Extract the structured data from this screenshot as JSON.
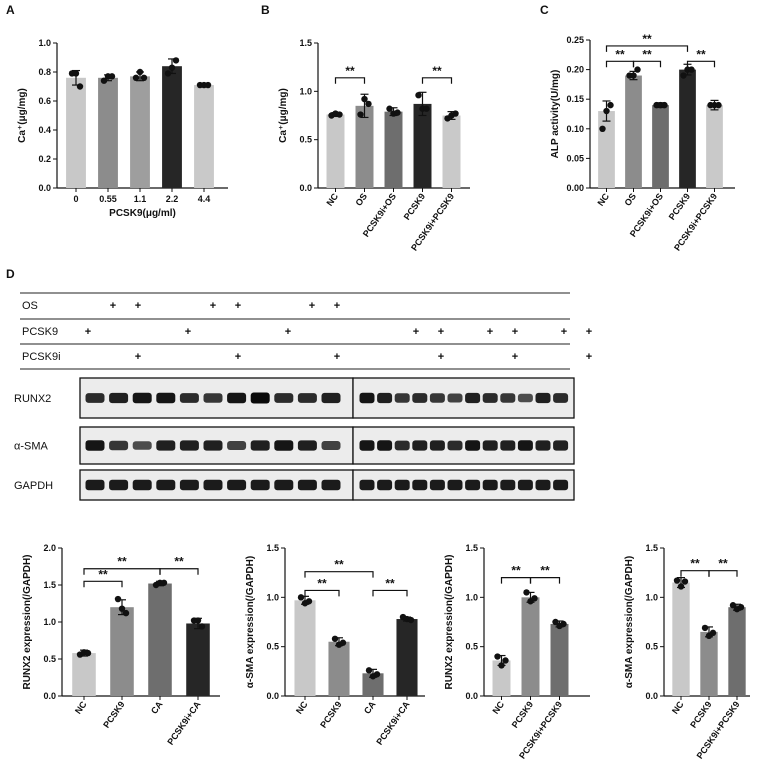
{
  "panels": {
    "A": "A",
    "B": "B",
    "C": "C",
    "D": "D"
  },
  "chart_data": [
    {
      "id": "A",
      "type": "bar",
      "categories": [
        "0",
        "0.55",
        "1.1",
        "2.2",
        "4.4"
      ],
      "values": [
        0.76,
        0.76,
        0.77,
        0.84,
        0.71
      ],
      "errors": [
        0.05,
        0.02,
        0.03,
        0.05,
        0.01
      ],
      "points": [
        [
          0.79,
          0.79,
          0.7
        ],
        [
          0.74,
          0.77,
          0.77
        ],
        [
          0.76,
          0.8,
          0.76
        ],
        [
          0.79,
          0.83,
          0.88
        ],
        [
          0.71,
          0.71,
          0.71
        ]
      ],
      "colors": [
        "#c8c8c8",
        "#8c8c8c",
        "#9e9e9e",
        "#262626",
        "#c9c9c9"
      ],
      "xlabel": "PCSK9(μg/ml)",
      "ylabel": "Ca⁺(μg/mg)",
      "ylim": [
        0,
        1.0
      ],
      "yticks": [
        "0.0",
        "0.2",
        "0.4",
        "0.6",
        "0.8",
        "1.0"
      ],
      "grid": false,
      "significance": []
    },
    {
      "id": "B",
      "type": "bar",
      "categories": [
        "NC",
        "OS",
        "PCSK9i+OS",
        "PCSK9",
        "PCSK9i+PCSK9"
      ],
      "values": [
        0.76,
        0.85,
        0.79,
        0.87,
        0.75
      ],
      "errors": [
        0.02,
        0.12,
        0.04,
        0.12,
        0.04
      ],
      "points": [
        [
          0.75,
          0.77,
          0.76
        ],
        [
          0.76,
          0.92,
          0.87
        ],
        [
          0.82,
          0.77,
          0.78
        ],
        [
          0.96,
          0.82,
          0.82
        ],
        [
          0.72,
          0.75,
          0.77
        ]
      ],
      "colors": [
        "#c8c8c8",
        "#8c8c8c",
        "#6e6e6e",
        "#262626",
        "#c9c9c9"
      ],
      "xlabel": "",
      "ylabel": "Ca⁺(μg/mg)",
      "ylim": [
        0,
        1.5
      ],
      "yticks": [
        "0.0",
        "0.5",
        "1.0",
        "1.5"
      ],
      "grid": false,
      "significance": [
        {
          "from": 0,
          "to": 1,
          "label": "**",
          "y": 1.14
        },
        {
          "from": 3,
          "to": 4,
          "label": "**",
          "y": 1.14
        }
      ]
    },
    {
      "id": "C",
      "type": "bar",
      "categories": [
        "NC",
        "OS",
        "PCSK9i+OS",
        "PCSK9",
        "PCSK9i+PCSK9"
      ],
      "values": [
        0.13,
        0.19,
        0.14,
        0.2,
        0.14
      ],
      "errors": [
        0.017,
        0.007,
        0.004,
        0.009,
        0.008
      ],
      "points": [
        [
          0.1,
          0.13,
          0.14
        ],
        [
          0.19,
          0.19,
          0.2
        ],
        [
          0.14,
          0.14,
          0.14
        ],
        [
          0.19,
          0.2,
          0.2
        ],
        [
          0.14,
          0.14,
          0.14
        ]
      ],
      "colors": [
        "#c8c8c8",
        "#8c8c8c",
        "#6e6e6e",
        "#262626",
        "#c9c9c9"
      ],
      "xlabel": "",
      "ylabel": "ALP activity(U/mg)",
      "ylim": [
        0,
        0.25
      ],
      "yticks": [
        "0.00",
        "0.05",
        "0.10",
        "0.15",
        "0.20",
        "0.25"
      ],
      "grid": false,
      "significance": [
        {
          "from": 0,
          "to": 1,
          "label": "**",
          "y": 0.214
        },
        {
          "from": 1,
          "to": 2,
          "label": "**",
          "y": 0.214
        },
        {
          "from": 3,
          "to": 4,
          "label": "**",
          "y": 0.214
        },
        {
          "from": 0,
          "to": 3,
          "label": "**",
          "y": 0.24
        }
      ]
    },
    {
      "id": "D1",
      "type": "bar",
      "categories": [
        "NC",
        "PCSK9",
        "CA",
        "PCSK9i+CA"
      ],
      "values": [
        0.58,
        1.2,
        1.52,
        0.98
      ],
      "errors": [
        0.04,
        0.1,
        0.03,
        0.07
      ],
      "points": [
        [
          0.56,
          0.59,
          0.58
        ],
        [
          1.31,
          1.18,
          1.12
        ],
        [
          1.5,
          1.53,
          1.53
        ],
        [
          1.02,
          1.02,
          0.94
        ]
      ],
      "colors": [
        "#c8c8c8",
        "#8c8c8c",
        "#6e6e6e",
        "#262626"
      ],
      "xlabel": "",
      "ylabel": "RUNX2 expression(/GAPDH)",
      "ylim": [
        0,
        2.0
      ],
      "yticks": [
        "0.0",
        "0.5",
        "1.0",
        "1.5",
        "2.0"
      ],
      "grid": false,
      "significance": [
        {
          "from": 0,
          "to": 1,
          "label": "**",
          "y": 1.55
        },
        {
          "from": 2,
          "to": 3,
          "label": "**",
          "y": 1.72
        },
        {
          "from": 0,
          "to": 2,
          "label": "**",
          "y": 1.72
        }
      ]
    },
    {
      "id": "D2",
      "type": "bar",
      "categories": [
        "NC",
        "PCSK9",
        "CA",
        "PCSK9i+CA"
      ],
      "values": [
        0.97,
        0.55,
        0.23,
        0.78
      ],
      "errors": [
        0.04,
        0.04,
        0.04,
        0.02
      ],
      "points": [
        [
          1.0,
          0.94,
          0.96
        ],
        [
          0.58,
          0.52,
          0.54
        ],
        [
          0.26,
          0.2,
          0.22
        ],
        [
          0.8,
          0.78,
          0.77
        ]
      ],
      "colors": [
        "#c8c8c8",
        "#8c8c8c",
        "#6e6e6e",
        "#262626"
      ],
      "xlabel": "",
      "ylabel": "α-SMA expression(/GAPDH)",
      "ylim": [
        0,
        1.5
      ],
      "yticks": [
        "0.0",
        "0.5",
        "1.0",
        "1.5"
      ],
      "grid": false,
      "significance": [
        {
          "from": 0,
          "to": 1,
          "label": "**",
          "y": 1.07
        },
        {
          "from": 2,
          "to": 3,
          "label": "**",
          "y": 1.07
        },
        {
          "from": 0,
          "to": 2,
          "label": "**",
          "y": 1.26
        }
      ]
    },
    {
      "id": "D3",
      "type": "bar",
      "categories": [
        "NC",
        "PCSK9",
        "PCSK9i+PCSK9"
      ],
      "values": [
        0.36,
        1.0,
        0.73
      ],
      "errors": [
        0.05,
        0.05,
        0.03
      ],
      "points": [
        [
          0.4,
          0.31,
          0.36
        ],
        [
          1.05,
          0.96,
          0.99
        ],
        [
          0.75,
          0.71,
          0.73
        ]
      ],
      "colors": [
        "#c8c8c8",
        "#8c8c8c",
        "#6e6e6e"
      ],
      "xlabel": "",
      "ylabel": "RUNX2 expression(/GAPDH)",
      "ylim": [
        0,
        1.5
      ],
      "yticks": [
        "0.0",
        "0.5",
        "1.0",
        "1.5"
      ],
      "grid": false,
      "significance": [
        {
          "from": 0,
          "to": 1,
          "label": "**",
          "y": 1.2
        },
        {
          "from": 1,
          "to": 2,
          "label": "**",
          "y": 1.2
        }
      ]
    },
    {
      "id": "D4",
      "type": "bar",
      "categories": [
        "NC",
        "PCSK9",
        "PCSK9i+PCSK9"
      ],
      "values": [
        1.15,
        0.65,
        0.9
      ],
      "errors": [
        0.05,
        0.05,
        0.03
      ],
      "points": [
        [
          1.17,
          1.11,
          1.16
        ],
        [
          0.69,
          0.61,
          0.64
        ],
        [
          0.92,
          0.88,
          0.9
        ]
      ],
      "colors": [
        "#c8c8c8",
        "#8c8c8c",
        "#6e6e6e"
      ],
      "xlabel": "",
      "ylabel": "α-SMA expression(/GAPDH)",
      "ylim": [
        0,
        1.5
      ],
      "yticks": [
        "0.0",
        "0.5",
        "1.0",
        "1.5"
      ],
      "grid": false,
      "significance": [
        {
          "from": 0,
          "to": 1,
          "label": "**",
          "y": 1.27
        },
        {
          "from": 1,
          "to": 2,
          "label": "**",
          "y": 1.27
        }
      ]
    }
  ],
  "western_blot": {
    "conditions": [
      {
        "label": "OS",
        "lanes": [
          4,
          5,
          8,
          9,
          12,
          13
        ]
      },
      {
        "label": "PCSK9",
        "lanes": [
          3,
          7,
          11,
          16,
          17,
          19,
          20,
          22,
          23
        ]
      },
      {
        "label": "PCSK9i",
        "lanes": [
          5,
          9,
          13,
          17,
          20,
          23
        ]
      }
    ],
    "plus": "+",
    "bands": [
      {
        "label": "RUNX2",
        "intensity": [
          0.7,
          0.8,
          0.9,
          0.9,
          0.7,
          0.6,
          0.9,
          1.0,
          0.7,
          0.7,
          0.8,
          0.9,
          0.8,
          0.6,
          0.7,
          0.6,
          0.5,
          0.8,
          0.7,
          0.6,
          0.4,
          0.8,
          0.7
        ]
      },
      {
        "label": "α-SMA",
        "intensity": [
          0.9,
          0.6,
          0.4,
          0.8,
          0.8,
          0.8,
          0.5,
          0.8,
          0.9,
          0.8,
          0.5,
          0.9,
          0.9,
          0.7,
          0.8,
          0.8,
          0.7,
          0.9,
          0.8,
          0.8,
          0.9,
          0.8,
          0.8
        ]
      },
      {
        "label": "GAPDH",
        "intensity": [
          0.85,
          0.85,
          0.85,
          0.85,
          0.85,
          0.85,
          0.85,
          0.85,
          0.85,
          0.85,
          0.85,
          0.85,
          0.85,
          0.85,
          0.85,
          0.85,
          0.85,
          0.85,
          0.85,
          0.85,
          0.85,
          0.85,
          0.85
        ]
      }
    ]
  }
}
